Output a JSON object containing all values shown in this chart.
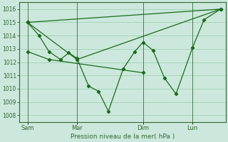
{
  "xlabel": "Pression niveau de la mer( hPa )",
  "bg_color": "#cce8dc",
  "grid_color": "#99ccaa",
  "line_color": "#1a6b1a",
  "spine_color": "#336633",
  "ylim": [
    1007.5,
    1016.5
  ],
  "yticks": [
    1008,
    1009,
    1010,
    1011,
    1012,
    1013,
    1014,
    1015,
    1016
  ],
  "xlim": [
    0,
    12.5
  ],
  "xtick_labels": [
    "Sam",
    "Mar",
    "Dim",
    "Lun"
  ],
  "xtick_positions": [
    0.5,
    3.5,
    7.5,
    10.5
  ],
  "vline_positions": [
    0.5,
    3.5,
    7.5,
    10.5
  ],
  "main_line": {
    "x": [
      0.5,
      1.2,
      1.8,
      2.5,
      3.0,
      3.5,
      4.2,
      4.8,
      5.4,
      6.3,
      7.0,
      7.5,
      8.1,
      8.8,
      9.5,
      10.5,
      11.2,
      12.2
    ],
    "y": [
      1015.0,
      1014.0,
      1012.8,
      1012.2,
      1012.7,
      1012.3,
      1010.2,
      1009.8,
      1008.3,
      1011.5,
      1012.8,
      1013.5,
      1012.9,
      1010.8,
      1009.6,
      1013.1,
      1015.2,
      1016.0
    ]
  },
  "trend_lines": [
    {
      "x": [
        0.5,
        12.2
      ],
      "y": [
        1015.0,
        1016.0
      ]
    },
    {
      "x": [
        0.5,
        3.5,
        12.2
      ],
      "y": [
        1015.0,
        1012.2,
        1016.0
      ]
    },
    {
      "x": [
        0.5,
        1.8,
        7.5
      ],
      "y": [
        1012.8,
        1012.2,
        1011.2
      ]
    }
  ],
  "marker": "D",
  "markersize": 2.2,
  "linewidth": 0.9,
  "ytick_fontsize": 5.5,
  "xtick_fontsize": 6.0,
  "xlabel_fontsize": 6.5
}
